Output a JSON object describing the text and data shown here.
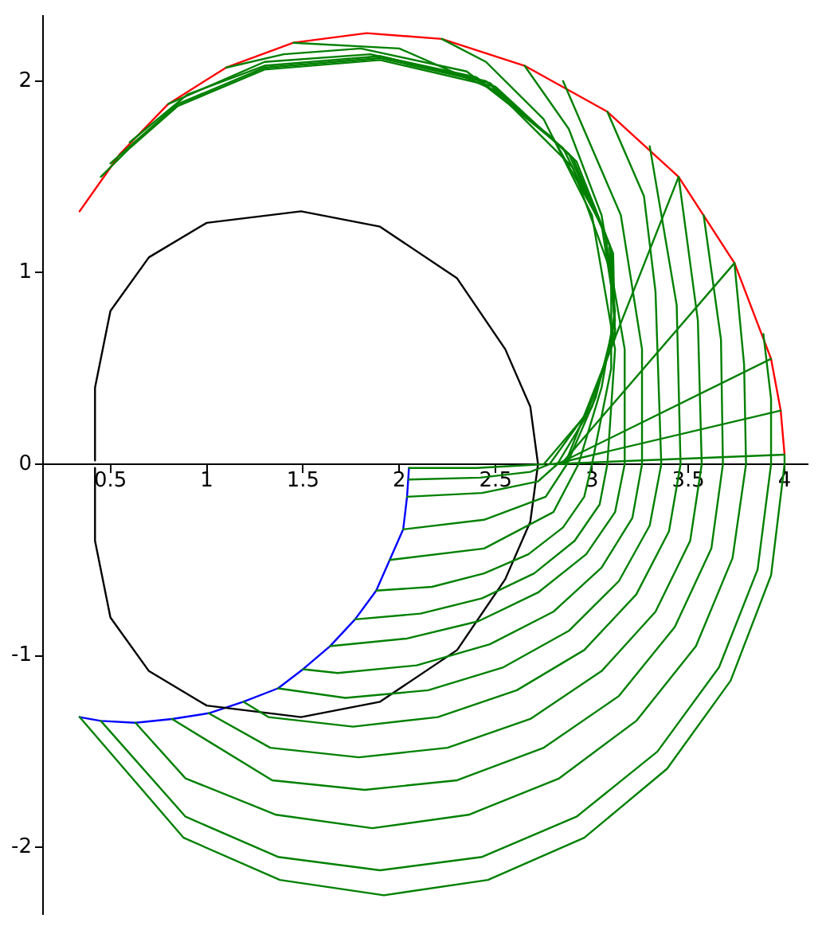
{
  "chart_data": {
    "type": "line",
    "marker": "none",
    "grid": false,
    "legend": false,
    "xlim": [
      0.15,
      4.12
    ],
    "ylim": [
      -2.35,
      2.34
    ],
    "xticks": [
      0.5,
      1,
      1.5,
      2,
      2.5,
      3,
      3.5,
      4
    ],
    "yticks": [
      -2,
      -1,
      0,
      1,
      2
    ],
    "series": [
      {
        "color": "#008000",
        "x": [
          0.34,
          0.88,
          1.38,
          1.92,
          2.46,
          2.96,
          3.39,
          3.72,
          3.93,
          4.0,
          4.0
        ],
        "values": [
          -1.32,
          -1.95,
          -2.17,
          -2.25,
          -2.17,
          -1.95,
          -1.59,
          -1.13,
          -0.58,
          0,
          0.05
        ]
      },
      {
        "color": "#008000",
        "x": [
          0.45,
          0.89,
          1.37,
          1.9,
          2.43,
          2.92,
          3.34,
          3.66,
          3.86,
          3.93,
          3.93,
          3.89
        ],
        "values": [
          -1.34,
          -1.84,
          -2.05,
          -2.12,
          -2.05,
          -1.84,
          -1.5,
          -1.06,
          -0.55,
          0,
          0.34,
          0.68
        ]
      },
      {
        "color": "#008000",
        "x": [
          0.63,
          0.89,
          1.36,
          1.86,
          2.36,
          2.83,
          3.23,
          3.54,
          3.73,
          3.8,
          3.79,
          3.74
        ],
        "values": [
          -1.35,
          -1.64,
          -1.83,
          -1.9,
          -1.83,
          -1.64,
          -1.34,
          -0.95,
          -0.49,
          0,
          0.52,
          1.05
        ]
      },
      {
        "color": "#008000",
        "x": [
          0.82,
          1.34,
          1.82,
          2.3,
          2.75,
          3.14,
          3.43,
          3.62,
          3.68,
          3.67,
          3.58
        ],
        "values": [
          -1.33,
          -1.65,
          -1.7,
          -1.65,
          -1.48,
          -1.21,
          -0.85,
          -0.44,
          0,
          0.65,
          1.3
        ]
      },
      {
        "color": "#008000",
        "x": [
          1.01,
          1.33,
          1.79,
          2.25,
          2.68,
          3.05,
          3.33,
          3.51,
          3.57,
          3.55,
          3.45
        ],
        "values": [
          -1.3,
          -1.48,
          -1.53,
          -1.48,
          -1.33,
          -1.08,
          -0.77,
          -0.4,
          0,
          0.75,
          1.5
        ]
      },
      {
        "color": "#008000",
        "x": [
          1.19,
          1.32,
          1.76,
          2.2,
          2.61,
          2.96,
          3.23,
          3.4,
          3.46,
          3.44,
          3.3
        ],
        "values": [
          -1.24,
          -1.32,
          -1.37,
          -1.32,
          -1.18,
          -0.97,
          -0.68,
          -0.35,
          0,
          0.83,
          1.66
        ]
      },
      {
        "color": "#008000",
        "x": [
          1.37,
          1.72,
          2.15,
          2.54,
          2.88,
          3.14,
          3.3,
          3.36,
          3.33,
          3.27,
          3.08
        ],
        "values": [
          -1.17,
          -1.22,
          -1.18,
          -1.06,
          -0.87,
          -0.61,
          -0.32,
          0,
          0.9,
          1.4,
          1.84
        ]
      },
      {
        "color": "#008000",
        "x": [
          1.5,
          1.68,
          2.09,
          2.47,
          2.8,
          3.05,
          3.21,
          3.26,
          3.26,
          3.15,
          2.85
        ],
        "values": [
          -1.07,
          -1.09,
          -1.05,
          -0.94,
          -0.77,
          -0.54,
          -0.28,
          0,
          0.6,
          1.3,
          2.0
        ]
      },
      {
        "color": "#008000",
        "x": [
          1.64,
          2.04,
          2.41,
          2.72,
          2.97,
          3.12,
          3.17,
          3.17,
          3.05,
          2.88,
          2.65
        ],
        "values": [
          -0.95,
          -0.91,
          -0.82,
          -0.67,
          -0.47,
          -0.25,
          0,
          0.6,
          1.3,
          1.75,
          2.08
        ]
      },
      {
        "color": "#008000",
        "x": [
          1.77,
          2.11,
          2.43,
          2.7,
          2.91,
          3.04,
          3.08,
          3.12,
          3.0,
          2.75,
          2.45,
          2.22
        ],
        "values": [
          -0.81,
          -0.78,
          -0.7,
          -0.57,
          -0.4,
          -0.21,
          0,
          0.6,
          1.3,
          1.8,
          2.1,
          2.22
        ]
      },
      {
        "color": "#008000",
        "x": [
          1.88,
          2.17,
          2.44,
          2.67,
          2.85,
          2.96,
          3.0,
          3.1,
          3.1,
          2.9,
          2.5,
          2.0,
          1.45
        ],
        "values": [
          -0.66,
          -0.64,
          -0.57,
          -0.47,
          -0.33,
          -0.17,
          0,
          0.5,
          1.0,
          1.55,
          1.95,
          2.17,
          2.2
        ]
      },
      {
        "color": "#008000",
        "x": [
          1.95,
          2.44,
          2.8,
          2.93,
          3.05,
          3.12,
          3.05,
          2.8,
          2.35,
          1.8,
          1.4,
          1.1
        ],
        "values": [
          -0.5,
          -0.44,
          -0.25,
          0,
          0.4,
          0.8,
          1.25,
          1.7,
          2.05,
          2.17,
          2.14,
          2.07
        ]
      },
      {
        "color": "#008000",
        "x": [
          2.02,
          2.44,
          2.76,
          2.87,
          3.02,
          3.12,
          3.07,
          2.85,
          2.4,
          1.85,
          1.3,
          0.8
        ],
        "values": [
          -0.34,
          -0.29,
          -0.17,
          0,
          0.35,
          0.75,
          1.2,
          1.65,
          2.02,
          2.14,
          2.1,
          1.88
        ]
      },
      {
        "color": "#008000",
        "x": [
          2.04,
          2.43,
          2.72,
          2.82,
          3.0,
          3.12,
          3.09,
          2.88,
          2.45,
          1.9,
          1.3,
          0.9,
          0.6
        ],
        "values": [
          -0.17,
          -0.15,
          -0.09,
          0,
          0.3,
          0.7,
          1.15,
          1.62,
          2.0,
          2.13,
          2.08,
          1.93,
          1.68
        ]
      },
      {
        "color": "#008000",
        "x": [
          2.05,
          2.42,
          2.68,
          2.78,
          2.98,
          3.12,
          3.1,
          2.9,
          2.47,
          1.9,
          1.3,
          0.85,
          0.5
        ],
        "values": [
          -0.08,
          -0.07,
          -0.04,
          0,
          0.28,
          0.68,
          1.12,
          1.6,
          1.99,
          2.12,
          2.07,
          1.88,
          1.57
        ]
      },
      {
        "color": "#008000",
        "x": [
          2.05,
          2.4,
          2.75,
          2.97,
          3.12,
          3.11,
          2.92,
          2.5,
          1.9,
          1.3,
          0.85,
          0.6,
          0.45
        ],
        "values": [
          -0.02,
          -0.02,
          0,
          0.26,
          0.66,
          1.1,
          1.58,
          1.97,
          2.11,
          2.06,
          1.87,
          1.65,
          1.5
        ]
      },
      {
        "color": "#008000",
        "x": [
          2.78,
          4.0
        ],
        "values": [
          0,
          0.05
        ]
      },
      {
        "color": "#008000",
        "x": [
          2.8,
          3.98
        ],
        "values": [
          0,
          0.28
        ]
      },
      {
        "color": "#008000",
        "x": [
          2.82,
          3.93
        ],
        "values": [
          0,
          0.55
        ]
      },
      {
        "color": "#008000",
        "x": [
          2.84,
          3.74
        ],
        "values": [
          0,
          1.05
        ]
      },
      {
        "color": "#008000",
        "x": [
          2.86,
          3.45
        ],
        "values": [
          0,
          1.5
        ]
      },
      {
        "color": "#000000",
        "x": [
          0.42,
          0.42,
          0.5,
          0.7,
          1.0,
          1.49,
          1.9,
          2.3,
          2.55,
          2.68,
          2.72,
          2.68,
          2.55,
          2.3,
          1.9,
          1.49,
          1.0,
          0.7,
          0.5,
          0.42,
          0.42
        ],
        "values": [
          0.02,
          0.4,
          0.8,
          1.08,
          1.26,
          1.32,
          1.24,
          0.97,
          0.6,
          0.3,
          0,
          -0.3,
          -0.6,
          -0.97,
          -1.24,
          -1.32,
          -1.26,
          -1.08,
          -0.8,
          -0.4,
          -0.02
        ]
      },
      {
        "color": "#0000ff",
        "x": [
          0.34,
          0.45,
          0.63,
          0.82,
          1.01,
          1.19,
          1.37,
          1.5,
          1.64,
          1.77,
          1.88,
          1.95,
          2.02,
          2.04,
          2.05
        ],
        "values": [
          -1.32,
          -1.34,
          -1.35,
          -1.33,
          -1.3,
          -1.24,
          -1.17,
          -1.07,
          -0.95,
          -0.81,
          -0.66,
          -0.5,
          -0.34,
          -0.17,
          -0.02
        ]
      },
      {
        "color": "#ff0000",
        "x": [
          0.34,
          0.55,
          0.8,
          1.1,
          1.45,
          1.83,
          2.22,
          2.65,
          3.08,
          3.45,
          3.74,
          3.93,
          3.98,
          4.0
        ],
        "values": [
          1.32,
          1.62,
          1.88,
          2.07,
          2.2,
          2.25,
          2.22,
          2.08,
          1.84,
          1.5,
          1.05,
          0.55,
          0.28,
          0.05
        ]
      }
    ]
  }
}
